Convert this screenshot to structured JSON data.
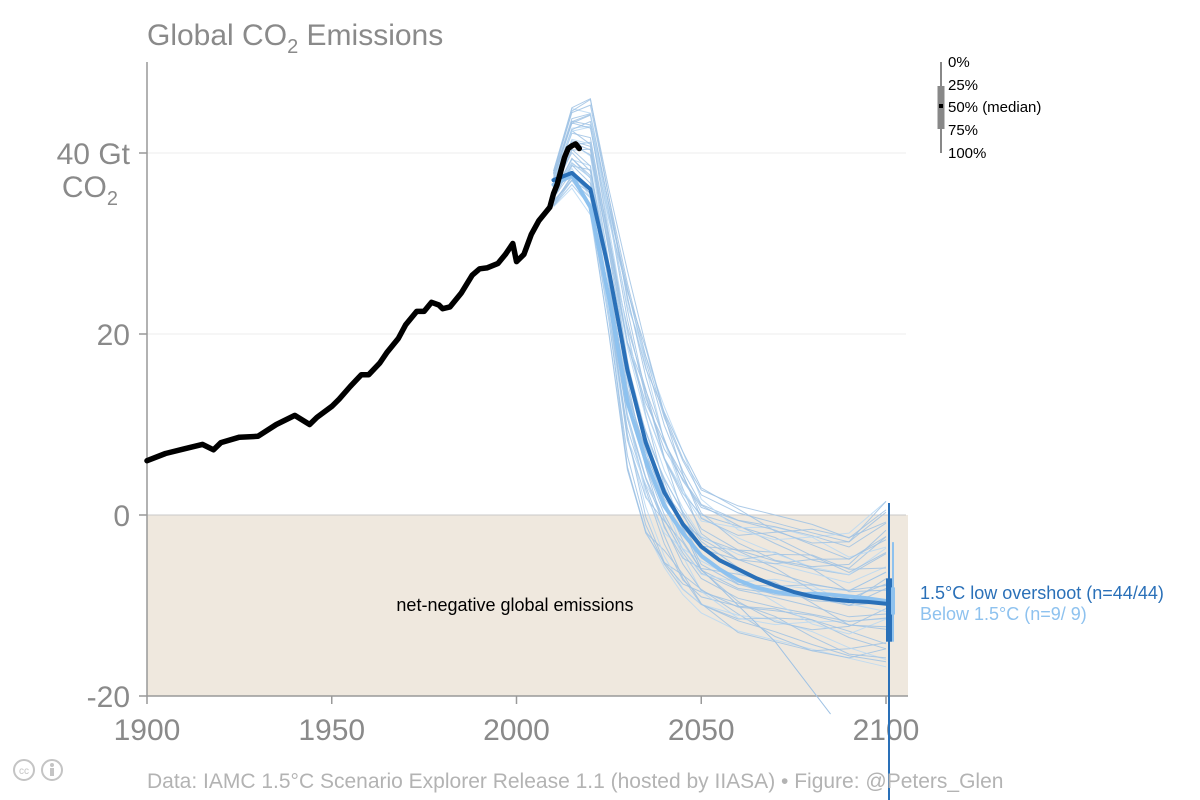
{
  "chart_data": {
    "type": "line",
    "title": "Global CO",
    "title_sub": "2",
    "title_rest": " Emissions",
    "ylabel_line1": "40 Gt",
    "ylabel_line2": "CO",
    "ylabel_line2_sub": "2",
    "xlim": [
      1900,
      2100
    ],
    "ylim": [
      -20,
      50
    ],
    "xticks": [
      1900,
      1950,
      2000,
      2050,
      2100
    ],
    "yticks": [
      -20,
      0,
      20,
      40
    ],
    "ytick_labels": [
      "-20",
      "0",
      "20",
      ""
    ],
    "grid": "horizontal",
    "shaded_region": {
      "y_from": -20,
      "y_to": 0,
      "label": "net-negative global emissions",
      "color": "#efe8de"
    },
    "series": [
      {
        "name": "historical",
        "color": "#000000",
        "x": [
          1900,
          1905,
          1910,
          1915,
          1918,
          1920,
          1925,
          1930,
          1935,
          1940,
          1944,
          1946,
          1950,
          1952,
          1955,
          1958,
          1960,
          1963,
          1965,
          1968,
          1970,
          1973,
          1975,
          1977,
          1979,
          1980,
          1982,
          1985,
          1988,
          1990,
          1992,
          1995,
          1997,
          1999,
          2000,
          2002,
          2004,
          2006,
          2008,
          2009,
          2010,
          2011,
          2012,
          2013,
          2014,
          2015,
          2016,
          2017
        ],
        "y": [
          6.0,
          6.8,
          7.3,
          7.8,
          7.2,
          8.0,
          8.6,
          8.7,
          10.0,
          11.0,
          10.0,
          10.8,
          12.0,
          12.8,
          14.2,
          15.5,
          15.5,
          16.8,
          18.0,
          19.5,
          21.0,
          22.5,
          22.5,
          23.5,
          23.2,
          22.8,
          23.0,
          24.5,
          26.5,
          27.2,
          27.3,
          27.8,
          28.8,
          30.0,
          28.0,
          28.8,
          31.0,
          32.5,
          33.5,
          34.0,
          35.5,
          36.5,
          38.0,
          39.5,
          40.5,
          40.8,
          41.0,
          40.5
        ]
      }
    ],
    "scenario_median": {
      "name": "1.5°C low overshoot (n=44/44)",
      "color": "#2a70b8",
      "x": [
        2010,
        2015,
        2020,
        2025,
        2030,
        2035,
        2040,
        2045,
        2050,
        2055,
        2060,
        2065,
        2070,
        2075,
        2080,
        2085,
        2090,
        2095,
        2100
      ],
      "y": [
        37.0,
        37.8,
        36.0,
        27.0,
        16.0,
        8.0,
        2.5,
        -1.0,
        -3.5,
        -5.0,
        -6.0,
        -7.0,
        -7.8,
        -8.5,
        -9.0,
        -9.3,
        -9.5,
        -9.6,
        -9.8
      ]
    },
    "scenario_median_2": {
      "name": "Below 1.5°C (n=9/ 9)",
      "color": "#8ec2ef",
      "x": [
        2010,
        2015,
        2020,
        2025,
        2030,
        2035,
        2040,
        2045,
        2050,
        2055,
        2060,
        2065,
        2070,
        2075,
        2080,
        2085,
        2090,
        2095,
        2100
      ],
      "y": [
        36.5,
        37.5,
        34.0,
        24.0,
        12.5,
        6.0,
        1.0,
        -2.0,
        -4.5,
        -6.0,
        -7.2,
        -8.0,
        -8.5,
        -8.8,
        -8.7,
        -8.8,
        -9.0,
        -9.2,
        -9.5
      ]
    },
    "scenario_range": {
      "x": [
        2010,
        2015,
        2020,
        2025,
        2030,
        2035,
        2040,
        2045,
        2050,
        2060,
        2070,
        2080,
        2090,
        2100
      ],
      "y_min": [
        34,
        36,
        33,
        20,
        5,
        -2,
        -6,
        -9,
        -11,
        -13,
        -14,
        -15,
        -16,
        -17
      ],
      "y_max": [
        38,
        45,
        46,
        36,
        27,
        19,
        12,
        7,
        3,
        1,
        0,
        -1,
        -2,
        1.5
      ]
    },
    "legend_stats": [
      "0%",
      "25%",
      "50% (median)",
      "75%",
      "100%"
    ],
    "footer": "Data: IAMC 1.5°C Scenario Explorer Release 1.1 (hosted by IIASA)  •  Figure: @Peters_Glen"
  }
}
